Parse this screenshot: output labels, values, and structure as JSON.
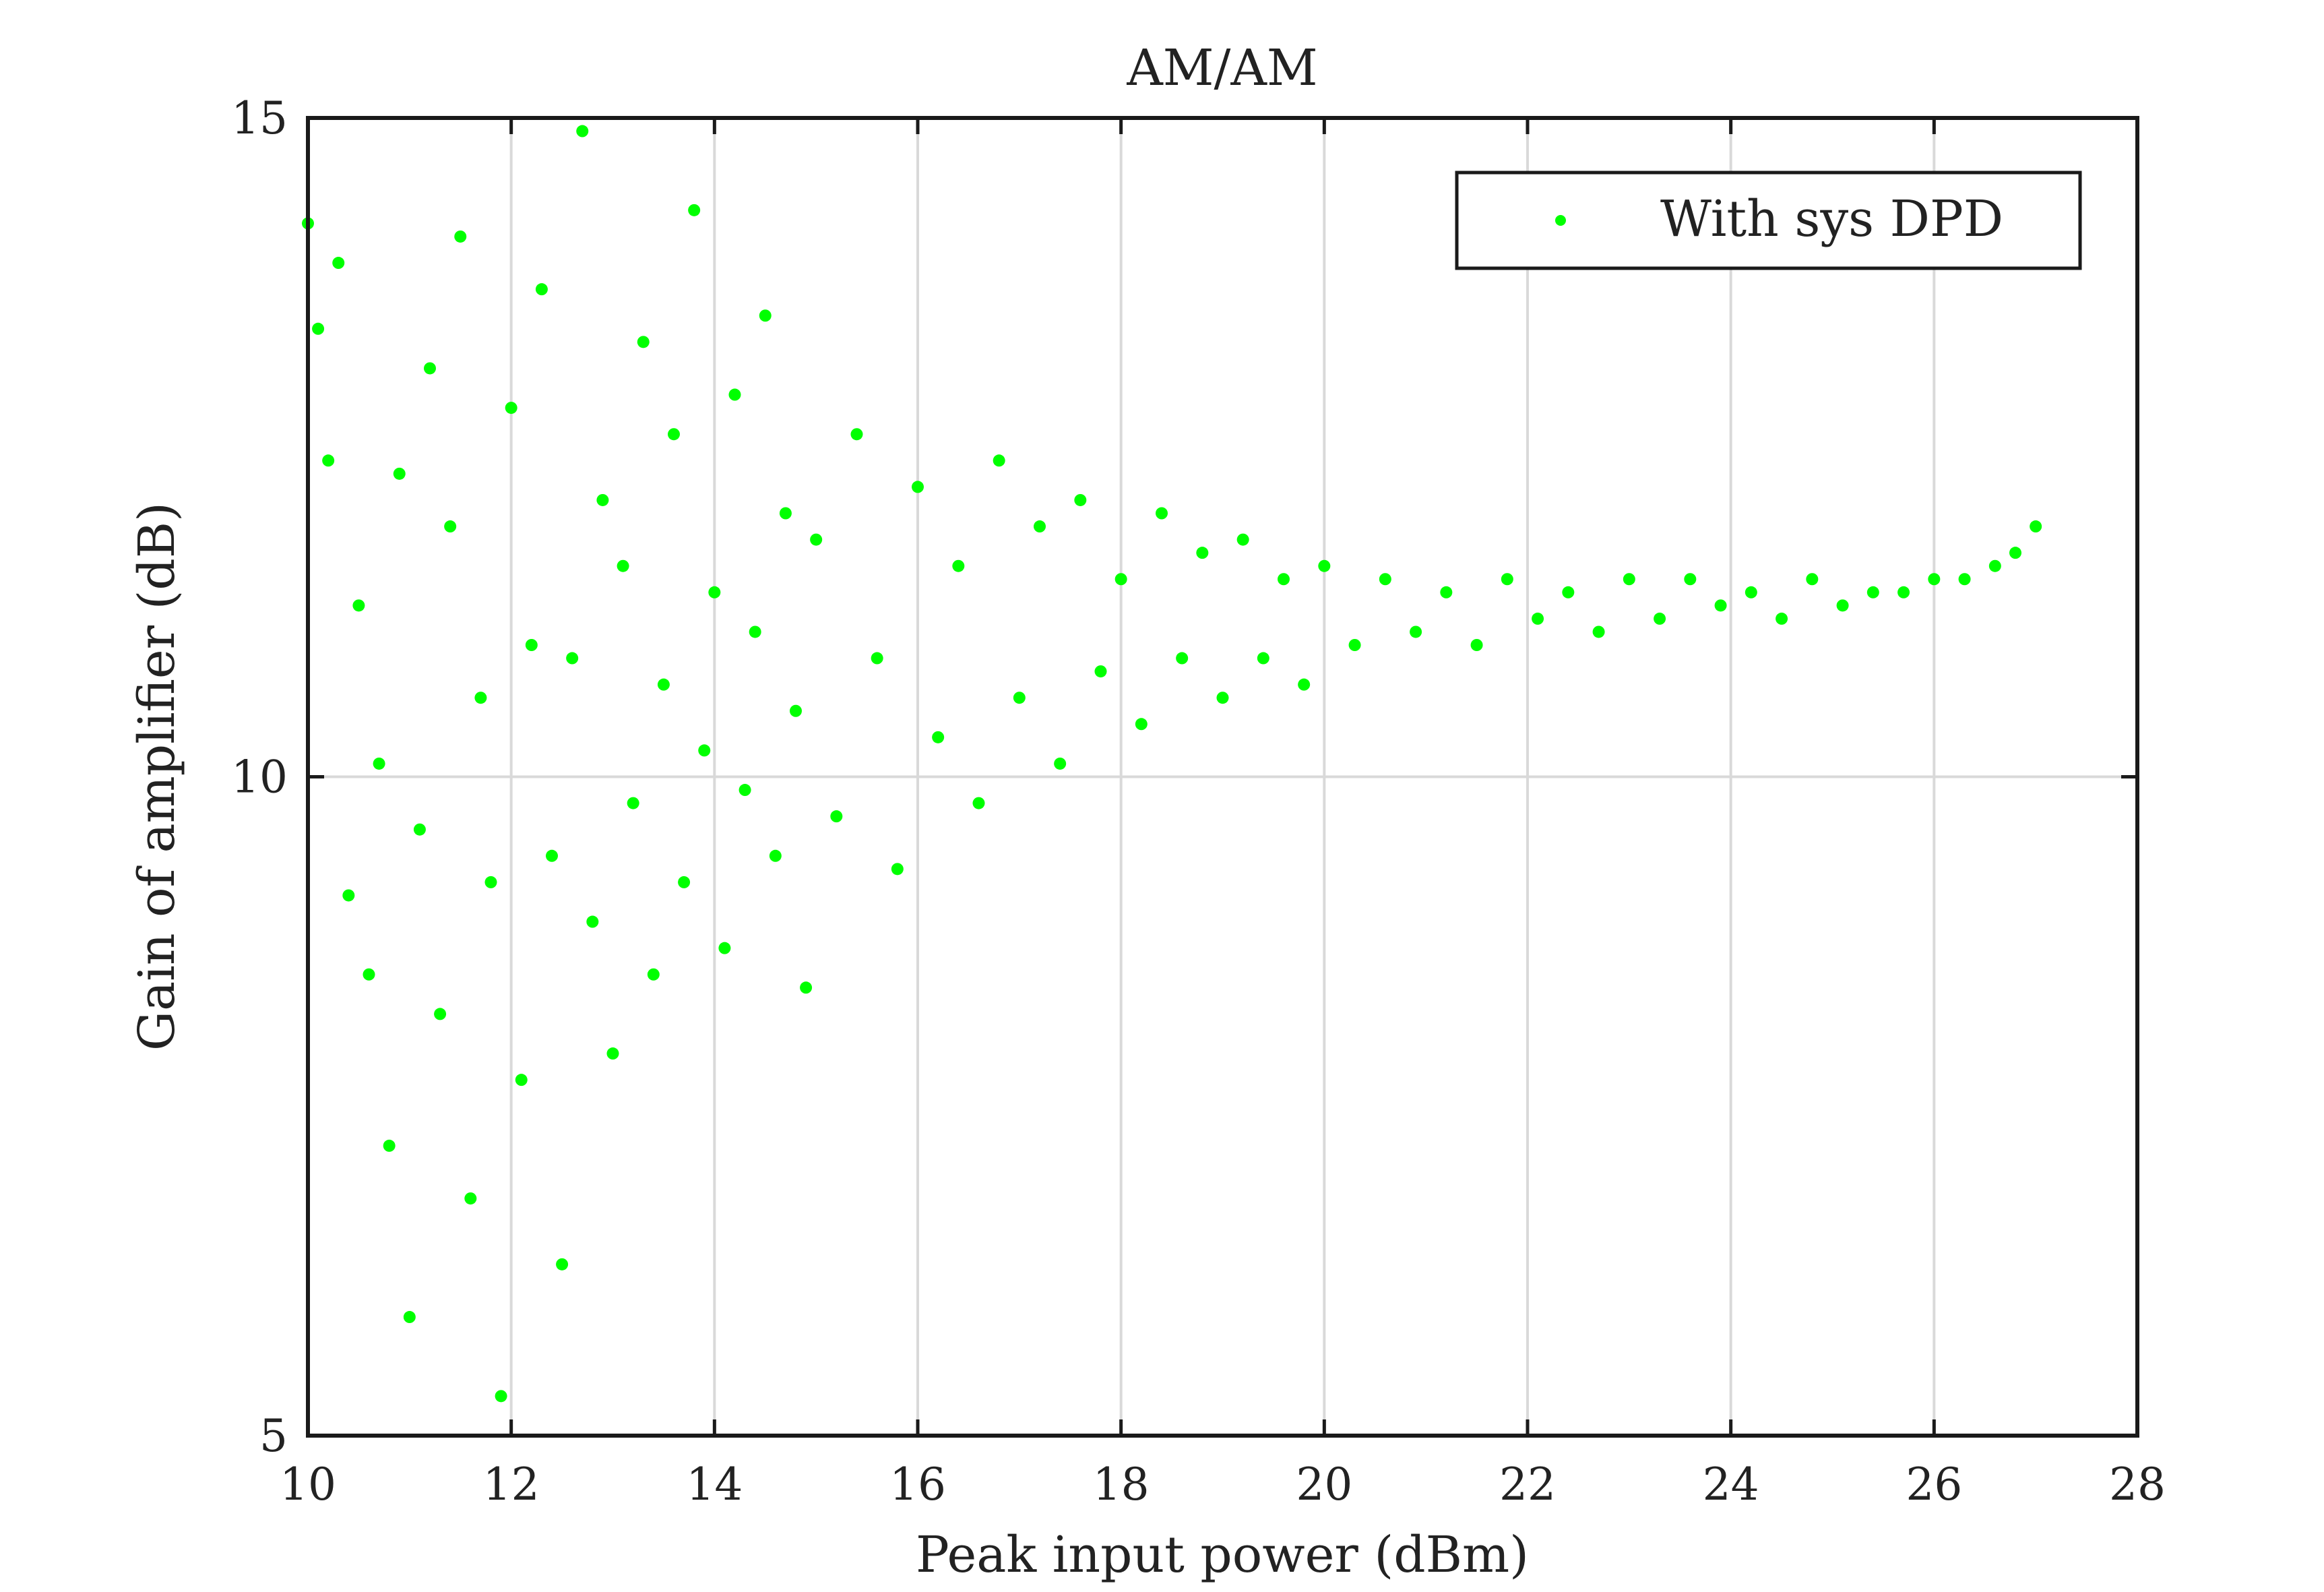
{
  "chart_data": {
    "type": "scatter",
    "title": "AM/AM",
    "xlabel": "Peak input power (dBm)",
    "ylabel": "Gain of amplifier (dB)",
    "xlim": [
      10,
      28
    ],
    "ylim": [
      5,
      15
    ],
    "xticks": [
      "10",
      "12",
      "14",
      "16",
      "18",
      "20",
      "22",
      "24",
      "26",
      "28"
    ],
    "yticks": [
      "5",
      "10",
      "15"
    ],
    "grid": true,
    "legend_position": "top-right",
    "series": [
      {
        "name": "With sys DPD",
        "color": "#00ff00",
        "marker": "dot",
        "points": [
          [
            10.0,
            14.2
          ],
          [
            10.1,
            13.4
          ],
          [
            10.2,
            12.4
          ],
          [
            10.3,
            13.9
          ],
          [
            10.4,
            9.1
          ],
          [
            10.5,
            11.3
          ],
          [
            10.6,
            8.5
          ],
          [
            10.7,
            10.1
          ],
          [
            10.8,
            7.2
          ],
          [
            10.9,
            12.3
          ],
          [
            11.0,
            5.9
          ],
          [
            11.1,
            9.6
          ],
          [
            11.2,
            13.1
          ],
          [
            11.3,
            8.2
          ],
          [
            11.4,
            11.9
          ],
          [
            11.5,
            14.1
          ],
          [
            11.6,
            6.8
          ],
          [
            11.7,
            10.6
          ],
          [
            11.8,
            9.2
          ],
          [
            11.9,
            5.3
          ],
          [
            12.0,
            12.8
          ],
          [
            12.1,
            7.7
          ],
          [
            12.2,
            11.0
          ],
          [
            12.3,
            13.7
          ],
          [
            12.4,
            9.4
          ],
          [
            12.5,
            6.3
          ],
          [
            12.6,
            10.9
          ],
          [
            12.7,
            14.9
          ],
          [
            12.8,
            8.9
          ],
          [
            12.9,
            12.1
          ],
          [
            13.0,
            7.9
          ],
          [
            13.1,
            11.6
          ],
          [
            13.2,
            9.8
          ],
          [
            13.3,
            13.3
          ],
          [
            13.4,
            8.5
          ],
          [
            13.5,
            10.7
          ],
          [
            13.6,
            12.6
          ],
          [
            13.7,
            9.2
          ],
          [
            13.8,
            14.3
          ],
          [
            13.9,
            10.2
          ],
          [
            14.0,
            11.4
          ],
          [
            14.1,
            8.7
          ],
          [
            14.2,
            12.9
          ],
          [
            14.3,
            9.9
          ],
          [
            14.4,
            11.1
          ],
          [
            14.5,
            13.5
          ],
          [
            14.6,
            9.4
          ],
          [
            14.7,
            12.0
          ],
          [
            14.8,
            10.5
          ],
          [
            14.9,
            8.4
          ],
          [
            15.0,
            11.8
          ],
          [
            15.2,
            9.7
          ],
          [
            15.4,
            12.6
          ],
          [
            15.6,
            10.9
          ],
          [
            15.8,
            9.3
          ],
          [
            16.0,
            12.2
          ],
          [
            16.2,
            10.3
          ],
          [
            16.4,
            11.6
          ],
          [
            16.6,
            9.8
          ],
          [
            16.8,
            12.4
          ],
          [
            17.0,
            10.6
          ],
          [
            17.2,
            11.9
          ],
          [
            17.4,
            10.1
          ],
          [
            17.6,
            12.1
          ],
          [
            17.8,
            10.8
          ],
          [
            18.0,
            11.5
          ],
          [
            18.2,
            10.4
          ],
          [
            18.4,
            12.0
          ],
          [
            18.6,
            10.9
          ],
          [
            18.8,
            11.7
          ],
          [
            19.0,
            10.6
          ],
          [
            19.2,
            11.8
          ],
          [
            19.4,
            10.9
          ],
          [
            19.6,
            11.5
          ],
          [
            19.8,
            10.7
          ],
          [
            20.0,
            11.6
          ],
          [
            20.3,
            11.0
          ],
          [
            20.6,
            11.5
          ],
          [
            20.9,
            11.1
          ],
          [
            21.2,
            11.4
          ],
          [
            21.5,
            11.0
          ],
          [
            21.8,
            11.5
          ],
          [
            22.1,
            11.2
          ],
          [
            22.4,
            11.4
          ],
          [
            22.7,
            11.1
          ],
          [
            23.0,
            11.5
          ],
          [
            23.3,
            11.2
          ],
          [
            23.6,
            11.5
          ],
          [
            23.9,
            11.3
          ],
          [
            24.2,
            11.4
          ],
          [
            24.5,
            11.2
          ],
          [
            24.8,
            11.5
          ],
          [
            25.1,
            11.3
          ],
          [
            25.4,
            11.4
          ],
          [
            25.7,
            11.4
          ],
          [
            26.0,
            11.5
          ],
          [
            26.3,
            11.5
          ],
          [
            26.6,
            11.6
          ],
          [
            26.8,
            11.7
          ],
          [
            27.0,
            11.9
          ]
        ]
      }
    ]
  }
}
